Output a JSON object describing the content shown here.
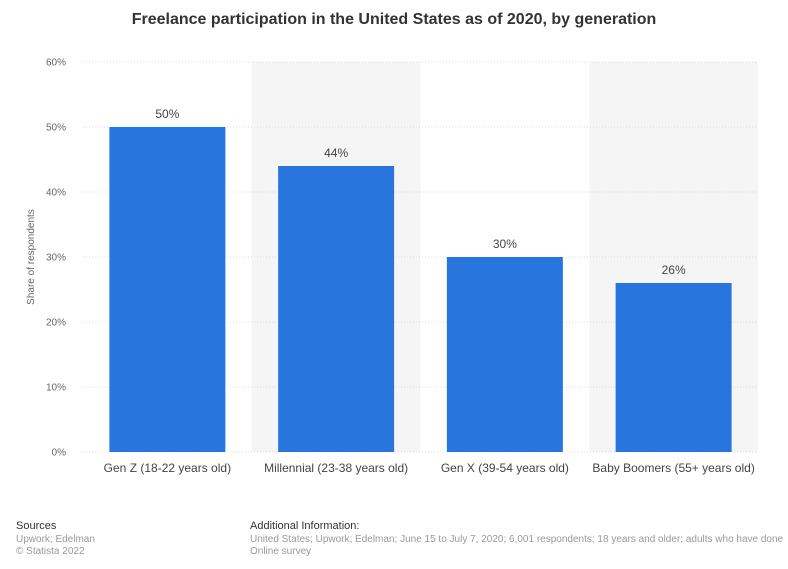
{
  "chart_data": {
    "type": "bar",
    "title": "Freelance participation in the United States as of 2020, by generation",
    "categories": [
      "Gen Z (18-22 years old)",
      "Millennial (23-38 years old)",
      "Gen X (39-54 years old)",
      "Baby Boomers (55+ years old)"
    ],
    "values": [
      50,
      44,
      30,
      26
    ],
    "value_labels": [
      "50%",
      "44%",
      "30%",
      "26%"
    ],
    "xlabel": "",
    "ylabel": "Share of respondents",
    "ylim": [
      0,
      60
    ],
    "yticks": [
      0,
      10,
      20,
      30,
      40,
      50,
      60
    ],
    "ytick_labels": [
      "0%",
      "10%",
      "20%",
      "30%",
      "40%",
      "50%",
      "60%"
    ],
    "grid": true,
    "bar_color": "#2876dd"
  },
  "footer": {
    "sources_title": "Sources",
    "sources_text": "Upwork; Edelman",
    "copyright": "© Statista 2022",
    "additional_title": "Additional Information:",
    "additional_line1": "United States; Upwork; Edelman; June 15 to July 7, 2020; 6,001 respondents; 18 years and older; adults who have done",
    "additional_line2": "Online survey"
  }
}
